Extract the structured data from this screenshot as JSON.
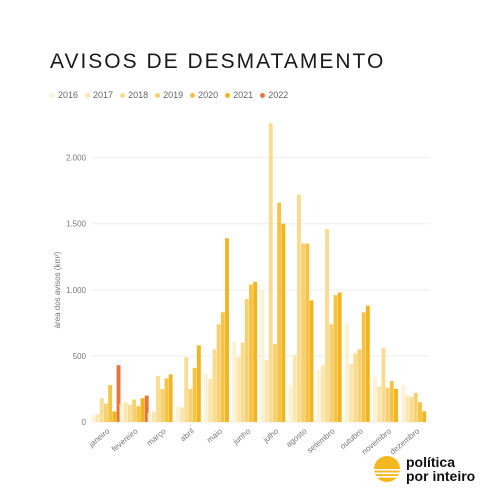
{
  "colors": {
    "2016": "#fdf3d4",
    "2017": "#fbe6b0",
    "2018": "#f8dc8f",
    "2019": "#f6d071",
    "2020": "#f5c445",
    "2021": "#f4b41f",
    "2022": "#e8763a",
    "grid": "#eeeeee",
    "brand_orange": "#f5b820"
  },
  "brand": {
    "line1": "política",
    "line2": "por inteiro",
    "icon": "sun-logo-icon"
  },
  "chart_data": {
    "type": "bar",
    "title": "AVISOS DE DESMATAMENTO",
    "ylabel": "área dos avisos (km²)",
    "ylim": [
      0,
      2300
    ],
    "yticks": [
      0,
      500,
      1000,
      1500,
      2000
    ],
    "ytick_labels": [
      "0",
      "500",
      "1.000",
      "1.500",
      "2.000"
    ],
    "grid": true,
    "legend_position": "top-left",
    "categories": [
      "janeiro",
      "fevereiro",
      "março",
      "abril",
      "maio",
      "junho",
      "julho",
      "agosto",
      "setembro",
      "outubro",
      "novembro",
      "dezembro"
    ],
    "series": [
      {
        "name": "2016",
        "values": [
          50,
          140,
          70,
          120,
          360,
          610,
          1000,
          280,
          390,
          750,
          340,
          280
        ]
      },
      {
        "name": "2017",
        "values": [
          60,
          150,
          80,
          110,
          330,
          490,
          470,
          510,
          430,
          440,
          270,
          200
        ]
      },
      {
        "name": "2018",
        "values": [
          180,
          130,
          350,
          490,
          550,
          600,
          2260,
          1720,
          1460,
          520,
          560,
          190
        ]
      },
      {
        "name": "2019",
        "values": [
          140,
          170,
          250,
          250,
          740,
          930,
          590,
          1350,
          740,
          550,
          260,
          220
        ]
      },
      {
        "name": "2020",
        "values": [
          280,
          120,
          330,
          410,
          830,
          1040,
          1660,
          1350,
          960,
          830,
          310,
          150
        ]
      },
      {
        "name": "2021",
        "values": [
          80,
          180,
          360,
          580,
          1390,
          1060,
          1500,
          920,
          980,
          880,
          250,
          80
        ]
      },
      {
        "name": "2022",
        "values": [
          430,
          200,
          null,
          null,
          null,
          null,
          null,
          null,
          null,
          null,
          null,
          null
        ]
      }
    ]
  }
}
